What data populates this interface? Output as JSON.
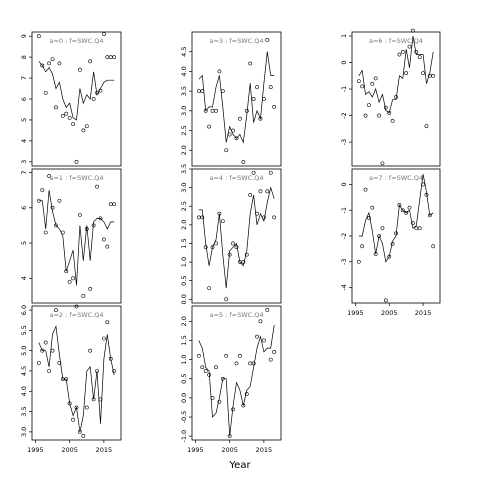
{
  "xlabel": "Year",
  "chart_data": {
    "type": "scatter+line",
    "xlabel": "Year",
    "x_ticks": [
      1995,
      2005,
      2015
    ],
    "xlim": [
      1994,
      2020
    ],
    "panels": [
      {
        "label": "a=0 : f=SWC.Q4",
        "yticks": [
          3,
          4,
          5,
          6,
          7,
          8,
          9
        ],
        "ylim": [
          2.8,
          9.2
        ],
        "points_x": [
          1996,
          1997,
          1998,
          1999,
          2000,
          2001,
          2002,
          2003,
          2004,
          2005,
          2006,
          2007,
          2008,
          2009,
          2010,
          2011,
          2012,
          2013,
          2014,
          2015,
          2016,
          2017,
          2018
        ],
        "points_y": [
          9.0,
          7.6,
          6.3,
          7.7,
          7.9,
          5.6,
          7.7,
          5.2,
          5.3,
          5.1,
          4.8,
          3.0,
          7.4,
          4.5,
          4.7,
          7.8,
          6.0,
          6.3,
          6.4,
          9.1,
          8.0,
          8.0,
          8.0
        ],
        "line_y": [
          7.8,
          7.6,
          7.3,
          7.5,
          7.2,
          6.5,
          6.8,
          6.0,
          5.6,
          5.8,
          5.1,
          5.0,
          6.5,
          5.8,
          6.2,
          6.0,
          7.3,
          6.2,
          6.5,
          6.8,
          6.9,
          6.9,
          6.9
        ]
      },
      {
        "label": "a=1 : f=SWC.Q4",
        "yticks": [
          4,
          5,
          6,
          7
        ],
        "ylim": [
          3.3,
          7.1
        ],
        "points_x": [
          1996,
          1997,
          1998,
          1999,
          2000,
          2001,
          2002,
          2003,
          2004,
          2005,
          2006,
          2007,
          2008,
          2009,
          2010,
          2011,
          2012,
          2013,
          2014,
          2015,
          2016,
          2017,
          2018
        ],
        "points_y": [
          6.2,
          6.5,
          5.3,
          6.9,
          6.0,
          5.5,
          6.2,
          5.3,
          4.2,
          3.9,
          4.0,
          3.2,
          5.8,
          3.5,
          5.4,
          3.7,
          5.5,
          6.6,
          5.7,
          5.1,
          4.9,
          6.1,
          6.1
        ],
        "line_y": [
          6.2,
          6.2,
          5.4,
          6.5,
          5.9,
          5.5,
          5.4,
          5.2,
          4.2,
          4.5,
          4.8,
          3.8,
          5.5,
          4.5,
          5.5,
          4.5,
          5.6,
          5.7,
          5.7,
          5.6,
          5.4,
          5.6,
          5.6
        ]
      },
      {
        "label": "a=2 : f=SWC.Q4",
        "yticks": [
          3.0,
          3.5,
          4.0,
          4.5,
          5.0,
          5.5,
          6.0
        ],
        "ylim": [
          2.8,
          6.1
        ],
        "points_x": [
          1996,
          1997,
          1998,
          1999,
          2000,
          2001,
          2002,
          2003,
          2004,
          2005,
          2006,
          2007,
          2008,
          2009,
          2010,
          2011,
          2012,
          2013,
          2014,
          2015,
          2016,
          2017,
          2018
        ],
        "points_y": [
          4.7,
          5.0,
          5.2,
          4.5,
          5.0,
          6.0,
          4.7,
          4.3,
          4.3,
          3.7,
          3.3,
          3.6,
          3.0,
          2.9,
          3.6,
          5.0,
          3.8,
          4.5,
          3.8,
          5.3,
          5.7,
          4.8,
          4.5
        ],
        "line_y": [
          5.2,
          5.0,
          5.0,
          4.6,
          5.4,
          5.6,
          4.9,
          4.3,
          4.3,
          3.7,
          3.4,
          3.6,
          3.0,
          3.4,
          4.5,
          4.6,
          3.8,
          4.5,
          3.2,
          4.8,
          5.4,
          4.8,
          4.4
        ]
      },
      {
        "label": "a=3 : f=SWC.Q4",
        "yticks": [
          2.0,
          2.5,
          3.0,
          3.5,
          4.0,
          4.5
        ],
        "ylim": [
          1.6,
          5.0
        ],
        "points_x": [
          1996,
          1997,
          1998,
          1999,
          2000,
          2001,
          2002,
          2003,
          2004,
          2005,
          2006,
          2007,
          2008,
          2009,
          2010,
          2011,
          2012,
          2013,
          2014,
          2015,
          2016,
          2017,
          2018
        ],
        "points_y": [
          3.5,
          3.5,
          3.0,
          2.6,
          3.0,
          3.0,
          4.0,
          3.5,
          2.0,
          2.4,
          2.5,
          2.3,
          2.8,
          1.7,
          3.0,
          4.2,
          3.3,
          3.6,
          2.8,
          3.3,
          4.8,
          3.6,
          3.1
        ],
        "line_y": [
          3.8,
          3.9,
          3.0,
          3.1,
          3.1,
          3.6,
          3.9,
          3.1,
          2.2,
          2.6,
          2.4,
          2.3,
          2.4,
          2.2,
          2.9,
          3.7,
          2.7,
          3.0,
          2.8,
          3.7,
          4.5,
          3.9,
          3.9
        ]
      },
      {
        "label": "a=4 : f=SWC.Q4",
        "yticks": [
          0.0,
          0.5,
          1.0,
          1.5,
          2.0,
          2.5,
          3.0,
          3.5
        ],
        "ylim": [
          -0.1,
          3.5
        ],
        "points_x": [
          1996,
          1997,
          1998,
          1999,
          2000,
          2001,
          2002,
          2003,
          2004,
          2005,
          2006,
          2007,
          2008,
          2009,
          2010,
          2011,
          2012,
          2013,
          2014,
          2015,
          2016,
          2017,
          2018
        ],
        "points_y": [
          2.2,
          2.2,
          1.4,
          0.3,
          1.4,
          1.5,
          2.3,
          2.1,
          0.0,
          1.2,
          1.5,
          1.4,
          1.0,
          1.0,
          1.2,
          2.8,
          3.4,
          2.3,
          2.9,
          2.2,
          2.9,
          3.4,
          2.2
        ],
        "line_y": [
          2.4,
          2.4,
          1.5,
          0.9,
          1.4,
          1.6,
          2.3,
          1.2,
          0.3,
          1.3,
          1.4,
          1.5,
          1.0,
          0.9,
          1.3,
          2.3,
          2.8,
          2.0,
          2.3,
          2.1,
          2.6,
          3.0,
          2.7
        ]
      },
      {
        "label": "a=5 : f=SWC.Q4",
        "yticks": [
          -1.0,
          -0.5,
          0.0,
          0.5,
          1.0,
          1.5,
          2.0
        ],
        "ylim": [
          -1.1,
          2.4
        ],
        "points_x": [
          1996,
          1997,
          1998,
          1999,
          2000,
          2001,
          2002,
          2003,
          2004,
          2005,
          2006,
          2007,
          2008,
          2009,
          2010,
          2011,
          2012,
          2013,
          2014,
          2015,
          2016,
          2017,
          2018
        ],
        "points_y": [
          1.1,
          0.8,
          0.7,
          0.6,
          0.0,
          0.8,
          -0.1,
          0.5,
          1.1,
          -1.0,
          -0.3,
          0.9,
          1.1,
          -0.2,
          0.1,
          0.9,
          0.9,
          1.6,
          2.0,
          1.5,
          2.3,
          1.0,
          1.2
        ],
        "line_y": [
          1.5,
          1.3,
          0.8,
          0.7,
          -0.5,
          -0.4,
          0.0,
          0.5,
          0.5,
          -1.0,
          -0.2,
          0.4,
          0.2,
          -0.2,
          0.2,
          0.3,
          0.8,
          1.3,
          1.6,
          1.2,
          1.3,
          1.3,
          1.9
        ]
      },
      {
        "label": "a=6 : f=SWC.Q4",
        "yticks": [
          -3,
          -2,
          -1,
          0,
          1
        ],
        "ylim": [
          -3.9,
          1.15
        ],
        "points_x": [
          1996,
          1997,
          1998,
          1999,
          2000,
          2001,
          2002,
          2003,
          2004,
          2005,
          2006,
          2007,
          2008,
          2009,
          2010,
          2011,
          2012,
          2013,
          2014,
          2015,
          2016,
          2017,
          2018
        ],
        "points_y": [
          -0.7,
          -0.9,
          -2.0,
          -1.6,
          -0.8,
          -0.6,
          -2.0,
          -3.8,
          -1.7,
          -1.9,
          -2.2,
          -1.3,
          0.3,
          0.4,
          -0.4,
          0.6,
          1.2,
          0.4,
          0.2,
          -0.4,
          -2.4,
          -0.5,
          -0.5
        ],
        "line_y": [
          -0.5,
          -0.3,
          -1.2,
          -1.1,
          -1.3,
          -1.0,
          -1.5,
          -1.2,
          -1.8,
          -1.9,
          -1.4,
          -1.4,
          -0.5,
          -0.6,
          0.5,
          -0.2,
          1.0,
          0.3,
          0.3,
          0.3,
          -0.8,
          -0.4,
          0.4
        ]
      },
      {
        "label": "a=7 : f=SWC.Q4",
        "yticks": [
          -4,
          -3,
          -2,
          -1,
          0
        ],
        "ylim": [
          -4.6,
          0.6
        ],
        "points_x": [
          1996,
          1997,
          1998,
          1999,
          2000,
          2001,
          2002,
          2003,
          2004,
          2005,
          2006,
          2007,
          2008,
          2009,
          2010,
          2011,
          2012,
          2013,
          2014,
          2015,
          2016,
          2017,
          2018
        ],
        "points_y": [
          -3.0,
          -2.4,
          -0.2,
          -1.3,
          -0.9,
          -2.7,
          -2.0,
          -1.7,
          -4.5,
          -2.8,
          -2.3,
          -1.9,
          -0.8,
          -1.0,
          -1.1,
          -0.9,
          -1.5,
          -1.7,
          -1.7,
          0.0,
          -0.4,
          -1.2,
          -2.4
        ],
        "line_y": [
          -2.0,
          -2.0,
          -1.4,
          -1.1,
          -1.8,
          -2.7,
          -2.0,
          -2.3,
          -3.0,
          -2.8,
          -2.2,
          -2.0,
          -0.8,
          -1.0,
          -1.1,
          -1.0,
          -1.7,
          -1.6,
          -0.6,
          0.4,
          -0.3,
          -1.2,
          -1.1
        ]
      }
    ]
  }
}
